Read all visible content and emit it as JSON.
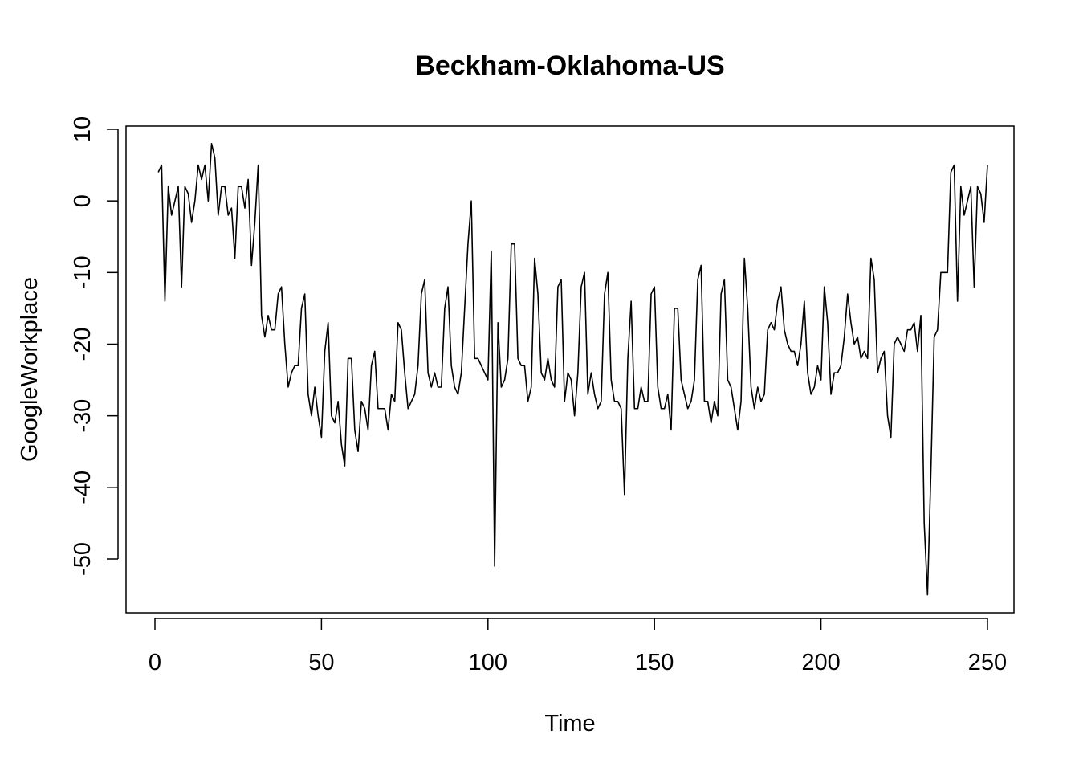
{
  "chart_data": {
    "type": "line",
    "title": "Beckham-Oklahoma-US",
    "xlabel": "Time",
    "ylabel": "GoogleWorkplace",
    "xlim": [
      0,
      250
    ],
    "ylim": [
      -55,
      10
    ],
    "x_ticks": [
      0,
      50,
      100,
      150,
      200,
      250
    ],
    "y_ticks": [
      -50,
      -40,
      -30,
      -20,
      -10,
      0,
      10
    ],
    "grid": false,
    "legend": "none",
    "series": [
      {
        "color": "#000000",
        "x_start": 1,
        "x_step": 1,
        "values": [
          4,
          5,
          -14,
          2,
          -2,
          0,
          2,
          -12,
          2,
          1,
          -3,
          0,
          5,
          3,
          5,
          0,
          8,
          6,
          -2,
          2,
          2,
          -2,
          -1,
          -8,
          2,
          2,
          -1,
          3,
          -9,
          -3,
          5,
          -16,
          -19,
          -16,
          -18,
          -18,
          -13,
          -12,
          -20,
          -26,
          -24,
          -23,
          -23,
          -15,
          -13,
          -27,
          -30,
          -26,
          -30,
          -33,
          -21,
          -17,
          -30,
          -31,
          -28,
          -34,
          -37,
          -22,
          -22,
          -32,
          -35,
          -28,
          -29,
          -32,
          -23,
          -21,
          -29,
          -29,
          -29,
          -32,
          -27,
          -28,
          -17,
          -18,
          -24,
          -29,
          -28,
          -27,
          -23,
          -13,
          -11,
          -24,
          -26,
          -24,
          -26,
          -26,
          -15,
          -12,
          -23,
          -26,
          -27,
          -24,
          -15,
          -6,
          0,
          -22,
          -22,
          -23,
          -24,
          -25,
          -7,
          -51,
          -17,
          -26,
          -25,
          -22,
          -6,
          -6,
          -22,
          -23,
          -23,
          -28,
          -26,
          -8,
          -13,
          -24,
          -25,
          -22,
          -25,
          -26,
          -12,
          -11,
          -28,
          -24,
          -25,
          -30,
          -24,
          -12,
          -10,
          -27,
          -24,
          -27,
          -29,
          -28,
          -13,
          -10,
          -25,
          -28,
          -28,
          -29,
          -41,
          -22,
          -14,
          -29,
          -29,
          -26,
          -28,
          -28,
          -13,
          -12,
          -26,
          -29,
          -29,
          -27,
          -32,
          -15,
          -15,
          -25,
          -27,
          -29,
          -28,
          -25,
          -11,
          -9,
          -28,
          -28,
          -31,
          -28,
          -30,
          -13,
          -11,
          -25,
          -26,
          -29,
          -32,
          -28,
          -8,
          -15,
          -26,
          -29,
          -26,
          -28,
          -27,
          -18,
          -17,
          -18,
          -14,
          -12,
          -18,
          -20,
          -21,
          -21,
          -23,
          -20,
          -14,
          -24,
          -27,
          -26,
          -23,
          -25,
          -12,
          -17,
          -27,
          -24,
          -24,
          -23,
          -19,
          -13,
          -17,
          -20,
          -19,
          -22,
          -21,
          -22,
          -8,
          -11,
          -24,
          -22,
          -21,
          -30,
          -33,
          -20,
          -19,
          -20,
          -21,
          -18,
          -18,
          -17,
          -21,
          -16,
          -45,
          -55,
          -38,
          -19,
          -18,
          -10,
          -10,
          -10,
          4,
          5,
          -14,
          2,
          -2,
          0,
          2,
          -12,
          2,
          1,
          -3,
          5
        ]
      }
    ]
  }
}
